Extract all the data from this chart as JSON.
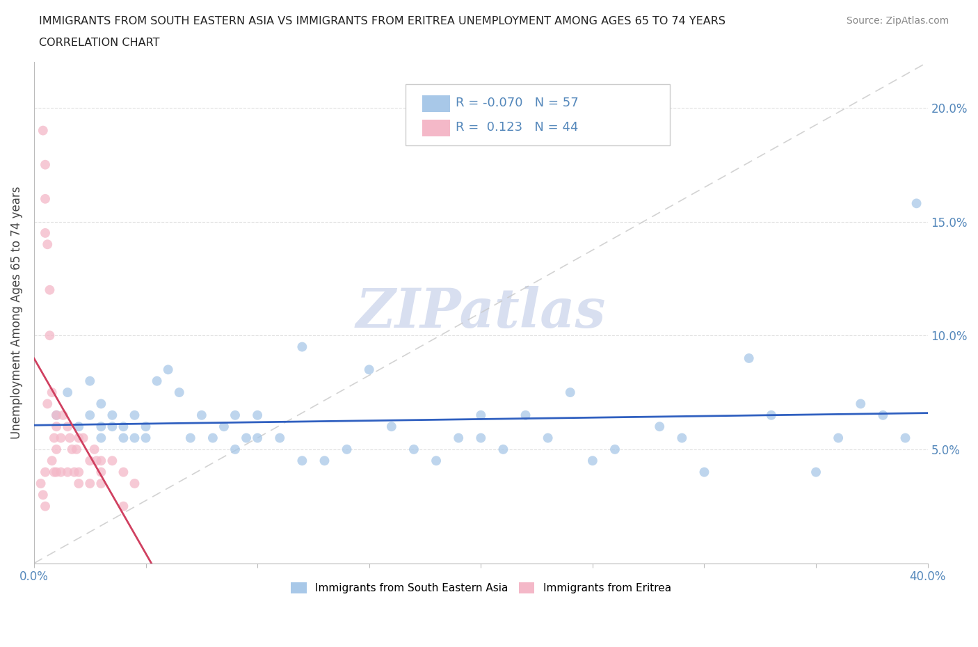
{
  "title_line1": "IMMIGRANTS FROM SOUTH EASTERN ASIA VS IMMIGRANTS FROM ERITREA UNEMPLOYMENT AMONG AGES 65 TO 74 YEARS",
  "title_line2": "CORRELATION CHART",
  "source_text": "Source: ZipAtlas.com",
  "ylabel": "Unemployment Among Ages 65 to 74 years",
  "xlim": [
    0.0,
    0.4
  ],
  "ylim": [
    0.0,
    0.22
  ],
  "legend_R_blue": "-0.070",
  "legend_N_blue": "57",
  "legend_R_pink": "0.123",
  "legend_N_pink": "44",
  "blue_color": "#A8C8E8",
  "pink_color": "#F4B8C8",
  "trend_blue_color": "#3060C0",
  "trend_pink_color": "#D04060",
  "diag_color": "#C8C8C8",
  "watermark": "ZIPatlas",
  "watermark_color": "#D8DFF0",
  "grid_color": "#DDDDDD",
  "blue_label": "Immigrants from South Eastern Asia",
  "pink_label": "Immigrants from Eritrea",
  "blue_points_x": [
    0.01,
    0.015,
    0.02,
    0.025,
    0.025,
    0.03,
    0.03,
    0.03,
    0.035,
    0.035,
    0.04,
    0.04,
    0.045,
    0.045,
    0.05,
    0.05,
    0.055,
    0.06,
    0.065,
    0.07,
    0.075,
    0.08,
    0.085,
    0.09,
    0.095,
    0.1,
    0.1,
    0.11,
    0.12,
    0.13,
    0.14,
    0.15,
    0.16,
    0.17,
    0.18,
    0.19,
    0.2,
    0.21,
    0.22,
    0.23,
    0.24,
    0.25,
    0.26,
    0.28,
    0.29,
    0.3,
    0.32,
    0.33,
    0.35,
    0.36,
    0.37,
    0.38,
    0.39,
    0.395,
    0.12,
    0.2,
    0.09
  ],
  "blue_points_y": [
    0.065,
    0.075,
    0.06,
    0.065,
    0.08,
    0.055,
    0.06,
    0.07,
    0.06,
    0.065,
    0.06,
    0.055,
    0.065,
    0.055,
    0.055,
    0.06,
    0.08,
    0.085,
    0.075,
    0.055,
    0.065,
    0.055,
    0.06,
    0.05,
    0.055,
    0.055,
    0.065,
    0.055,
    0.045,
    0.045,
    0.05,
    0.085,
    0.06,
    0.05,
    0.045,
    0.055,
    0.055,
    0.05,
    0.065,
    0.055,
    0.075,
    0.045,
    0.05,
    0.06,
    0.055,
    0.04,
    0.09,
    0.065,
    0.04,
    0.055,
    0.07,
    0.065,
    0.055,
    0.158,
    0.095,
    0.065,
    0.065
  ],
  "pink_points_x": [
    0.003,
    0.004,
    0.004,
    0.005,
    0.005,
    0.005,
    0.005,
    0.005,
    0.006,
    0.006,
    0.007,
    0.007,
    0.008,
    0.008,
    0.009,
    0.009,
    0.01,
    0.01,
    0.01,
    0.01,
    0.012,
    0.012,
    0.013,
    0.015,
    0.015,
    0.016,
    0.017,
    0.018,
    0.019,
    0.02,
    0.02,
    0.02,
    0.022,
    0.025,
    0.025,
    0.027,
    0.028,
    0.03,
    0.03,
    0.03,
    0.035,
    0.04,
    0.04,
    0.045
  ],
  "pink_points_y": [
    0.035,
    0.19,
    0.03,
    0.175,
    0.16,
    0.145,
    0.04,
    0.025,
    0.07,
    0.14,
    0.1,
    0.12,
    0.075,
    0.045,
    0.055,
    0.04,
    0.065,
    0.05,
    0.06,
    0.04,
    0.055,
    0.04,
    0.065,
    0.06,
    0.04,
    0.055,
    0.05,
    0.04,
    0.05,
    0.055,
    0.04,
    0.035,
    0.055,
    0.045,
    0.035,
    0.05,
    0.045,
    0.04,
    0.035,
    0.045,
    0.045,
    0.025,
    0.04,
    0.035
  ]
}
